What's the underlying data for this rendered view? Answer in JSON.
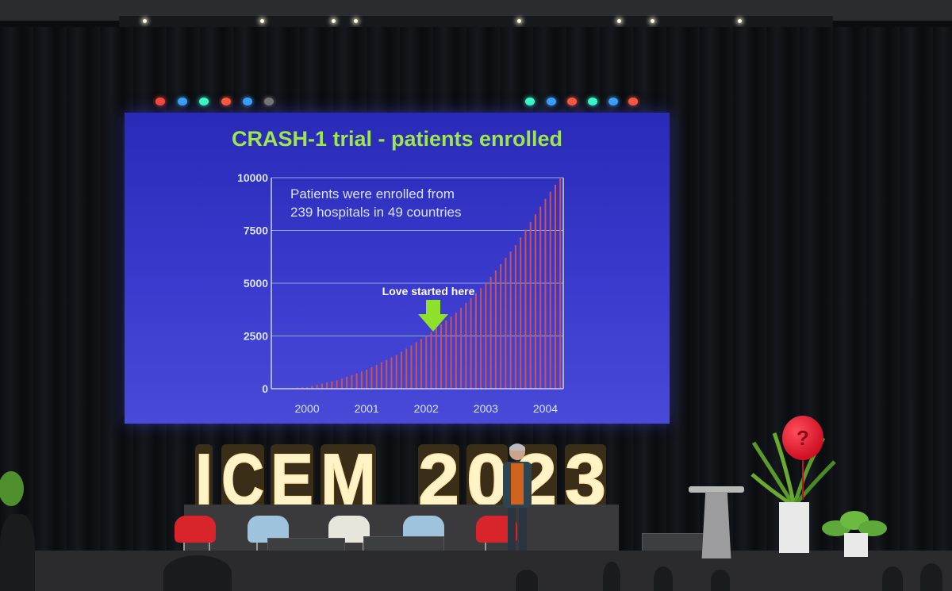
{
  "slide": {
    "title": "CRASH-1 trial - patients enrolled",
    "annotation": "Patients were enrolled from",
    "annotation_line2": "239 hospitals in 49 countries",
    "callout": "Love started here",
    "colors": {
      "background": "#3535c8",
      "title": "#9fe64c",
      "text": "#d8e4ff",
      "bars": "#d0524f",
      "arrow": "#8ee02a"
    }
  },
  "chart_data": {
    "type": "bar",
    "title": "CRASH-1 trial - patients enrolled",
    "xlabel": "",
    "ylabel": "",
    "y_ticks": [
      0,
      2500,
      5000,
      7500,
      10000
    ],
    "x_tick_labels": [
      "2000",
      "2001",
      "2002",
      "2003",
      "2004"
    ],
    "ylim": [
      0,
      10000
    ],
    "x_range": [
      1999.4,
      2004.3
    ],
    "series": [
      {
        "x": [
          1999.5,
          2000.0,
          2000.5,
          2001.0,
          2001.5,
          2002.0,
          2002.5,
          2003.0,
          2003.5,
          2004.0,
          2004.25
        ],
        "values": [
          0,
          80,
          400,
          900,
          1600,
          2500,
          3600,
          5000,
          6800,
          9000,
          10000
        ]
      }
    ],
    "grid": true
  },
  "stage": {
    "sign_letters": [
      "I",
      "C",
      "E",
      "M",
      "2",
      "0",
      "2",
      "3"
    ],
    "balloon_text": "?",
    "light_colors": [
      "#ff4a3a",
      "#3aa4ff",
      "#3affc8",
      "#ff5a3a",
      "#3aa4ff",
      "#777777",
      "#3affc8",
      "#3aa4ff",
      "#ff5a3a",
      "#3affc8",
      "#3aa4ff",
      "#ff5a3a"
    ],
    "chair_colors": [
      "#d8242b",
      "#9fc3dc",
      "#e6e6dc",
      "#9fc3dc",
      "#d8242b"
    ]
  }
}
